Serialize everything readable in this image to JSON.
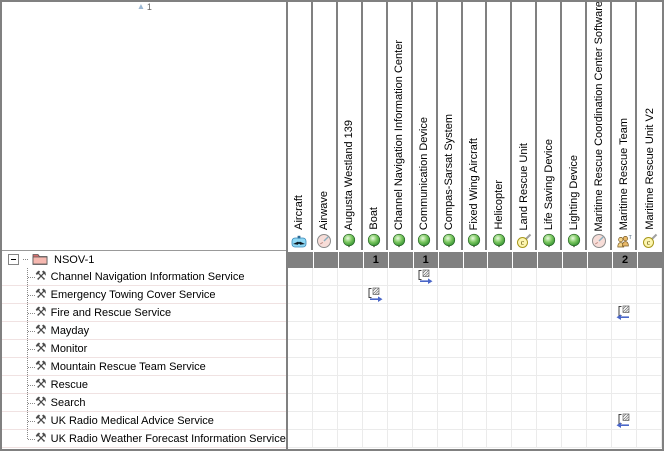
{
  "corner": {
    "sort": {
      "icon": "sort-ascending-triangle-icon",
      "order": "1"
    }
  },
  "tree": {
    "package": {
      "label": "NSOV-1",
      "icon": "package-folder-icon",
      "expander": "collapse-icon"
    },
    "items": [
      {
        "label": "Channel Navigation Information Service",
        "icon": "crossed-tools-icon"
      },
      {
        "label": "Emergency Towing Cover Service",
        "icon": "crossed-tools-icon"
      },
      {
        "label": "Fire and Rescue Service",
        "icon": "crossed-tools-icon"
      },
      {
        "label": "Mayday",
        "icon": "crossed-tools-icon"
      },
      {
        "label": "Monitor",
        "icon": "crossed-tools-icon"
      },
      {
        "label": "Mountain Rescue Team Service",
        "icon": "crossed-tools-icon"
      },
      {
        "label": "Rescue",
        "icon": "crossed-tools-icon"
      },
      {
        "label": "Search",
        "icon": "crossed-tools-icon"
      },
      {
        "label": "UK Radio Medical Advice Service",
        "icon": "crossed-tools-icon"
      },
      {
        "label": "UK Radio Weather Forecast Information Service",
        "icon": "crossed-tools-icon"
      }
    ]
  },
  "columns": [
    {
      "label": "Aircraft",
      "icon": "aircraft-icon"
    },
    {
      "label": "Airwave",
      "icon": "radar-dial-icon"
    },
    {
      "label": "Augusta Westland 139",
      "icon": "green-node-icon"
    },
    {
      "label": "Boat",
      "icon": "green-node-icon"
    },
    {
      "label": "Channel Navigation Information Center",
      "icon": "green-node-icon"
    },
    {
      "label": "Communication Device",
      "icon": "green-node-icon"
    },
    {
      "label": "Compas-Sarsat System",
      "icon": "green-node-icon"
    },
    {
      "label": "Fixed Wing Aircraft",
      "icon": "green-node-icon"
    },
    {
      "label": "Helicopter",
      "icon": "green-node-icon"
    },
    {
      "label": "Land Rescue Unit",
      "icon": "copyright-pencil-icon"
    },
    {
      "label": "Life Saving Device",
      "icon": "green-node-icon"
    },
    {
      "label": "Lighting Device",
      "icon": "green-node-icon"
    },
    {
      "label": "Maritime Rescue Coordination Center Software",
      "icon": "radar-dial-icon"
    },
    {
      "label": "Maritime Rescue Team",
      "icon": "people-group-icon"
    },
    {
      "label": "Maritime Rescue Unit V2",
      "icon": "copyright-pencil-icon"
    }
  ],
  "matrix": {
    "counts": [
      {
        "col": 3,
        "value": "1"
      },
      {
        "col": 5,
        "value": "1"
      },
      {
        "col": 13,
        "value": "2"
      }
    ],
    "links": [
      {
        "row": 0,
        "col": 5,
        "direction": "right",
        "icon": "relationship-arrow-right-icon"
      },
      {
        "row": 1,
        "col": 3,
        "direction": "right",
        "icon": "relationship-arrow-right-icon"
      },
      {
        "row": 2,
        "col": 13,
        "direction": "left",
        "icon": "relationship-arrow-left-icon"
      },
      {
        "row": 8,
        "col": 13,
        "direction": "left",
        "icon": "relationship-arrow-left-icon"
      }
    ]
  },
  "colors": {
    "frame": "#808080",
    "header_separator": "#808080",
    "count_row_bg": "#808080",
    "count_text": "#000000",
    "grid_line": "#ebebeb",
    "tree_row_line": "#f0e2e2",
    "link_arrow_blue": "#4a66c8",
    "green_node": "#2e8c2e",
    "folder_pink": "#f6b8b0"
  }
}
